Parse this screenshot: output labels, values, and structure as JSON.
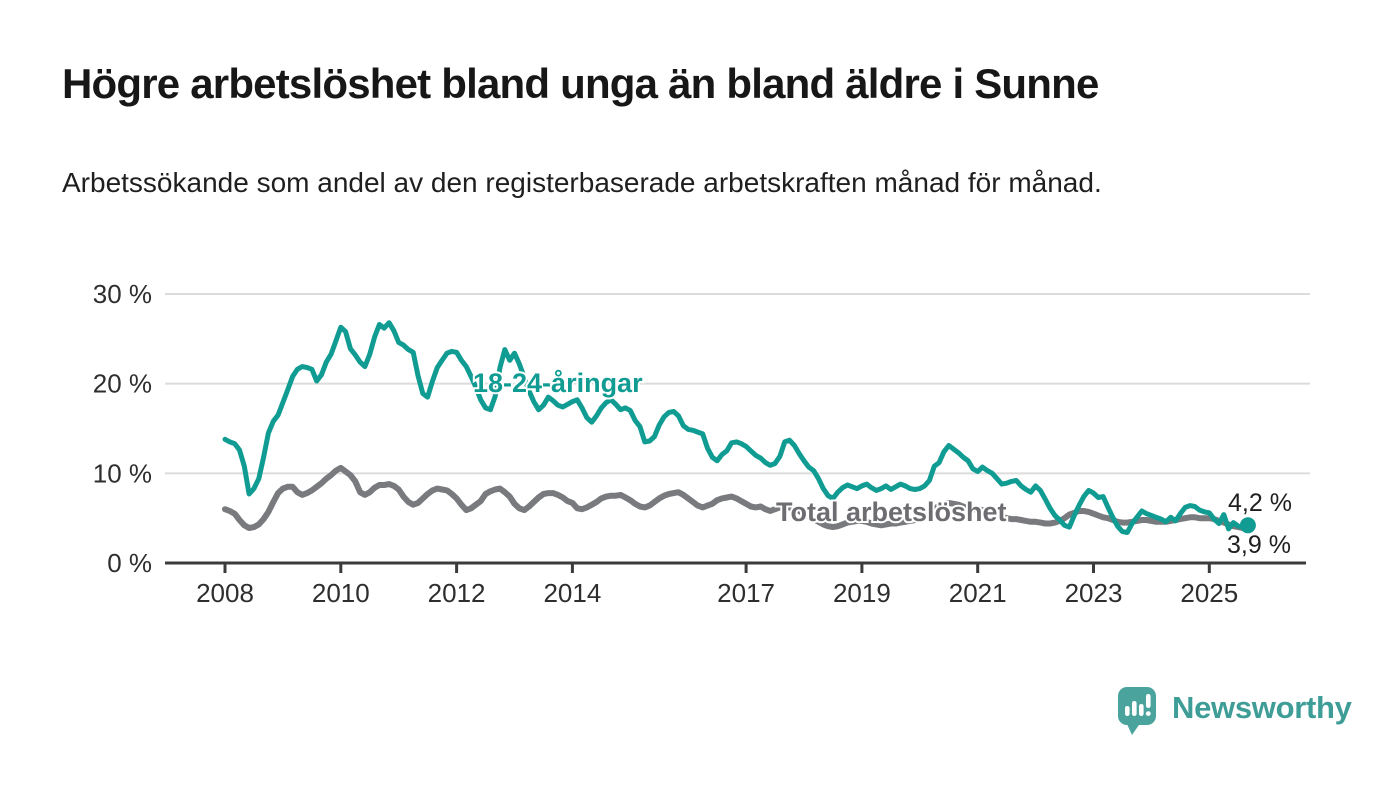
{
  "header": {
    "title": "Högre arbetslöshet bland unga än bland äldre i Sunne",
    "subtitle": "Arbetssökande som andel av den registerbaserade arbetskraften månad för månad."
  },
  "chart_data": {
    "type": "line",
    "unit": "%",
    "frequency": "monthly",
    "x_start": {
      "year": 2008,
      "month": 1
    },
    "x_end": {
      "year": 2025,
      "month": 9
    },
    "ylim": [
      0,
      30
    ],
    "grid": "horizontal",
    "colors": {
      "youth_line": "#109c92",
      "total_line": "#797a7e",
      "total_label": "#6c6c71",
      "gridline": "#dcdcdc",
      "axis": "#3b3b3b"
    },
    "y_ticks": [
      {
        "value": 30,
        "label": "30 %"
      },
      {
        "value": 20,
        "label": "20 %"
      },
      {
        "value": 10,
        "label": "10 %"
      },
      {
        "value": 0,
        "label": "0 %"
      }
    ],
    "x_ticks": [
      {
        "year": 2008,
        "label": "2008"
      },
      {
        "year": 2010,
        "label": "2010"
      },
      {
        "year": 2012,
        "label": "2012"
      },
      {
        "year": 2014,
        "label": "2014"
      },
      {
        "year": 2017,
        "label": "2017"
      },
      {
        "year": 2019,
        "label": "2019"
      },
      {
        "year": 2021,
        "label": "2021"
      },
      {
        "year": 2023,
        "label": "2023"
      },
      {
        "year": 2025,
        "label": "2025"
      }
    ],
    "series": [
      {
        "name": "Total arbetslöshet",
        "color": "#797a7e",
        "end_label": "3,9 %",
        "end_value": 3.9,
        "values": [
          6.0,
          5.8,
          5.5,
          4.8,
          4.2,
          3.9,
          4.0,
          4.3,
          4.9,
          5.7,
          6.8,
          7.8,
          8.3,
          8.5,
          8.5,
          7.9,
          7.6,
          7.8,
          8.1,
          8.5,
          8.9,
          9.4,
          9.8,
          10.3,
          10.6,
          10.2,
          9.8,
          9.1,
          7.9,
          7.6,
          7.9,
          8.4,
          8.7,
          8.7,
          8.8,
          8.6,
          8.2,
          7.4,
          6.8,
          6.5,
          6.7,
          7.2,
          7.7,
          8.1,
          8.3,
          8.2,
          8.1,
          7.7,
          7.2,
          6.5,
          5.9,
          6.1,
          6.5,
          6.9,
          7.7,
          8.0,
          8.2,
          8.3,
          7.9,
          7.4,
          6.6,
          6.1,
          5.9,
          6.3,
          6.8,
          7.3,
          7.7,
          7.8,
          7.8,
          7.6,
          7.3,
          6.9,
          6.7,
          6.1,
          6.0,
          6.2,
          6.5,
          6.8,
          7.2,
          7.4,
          7.5,
          7.5,
          7.6,
          7.3,
          7.0,
          6.6,
          6.3,
          6.2,
          6.4,
          6.8,
          7.2,
          7.5,
          7.7,
          7.8,
          7.9,
          7.6,
          7.2,
          6.8,
          6.4,
          6.2,
          6.4,
          6.6,
          7.0,
          7.2,
          7.3,
          7.4,
          7.2,
          6.9,
          6.6,
          6.3,
          6.2,
          6.3,
          6.0,
          5.8,
          6.0,
          6.2,
          6.3,
          6.2,
          6.0,
          5.8,
          5.5,
          5.2,
          4.9,
          4.6,
          4.3,
          4.1,
          4.0,
          4.1,
          4.3,
          4.5,
          4.6,
          4.7,
          4.7,
          4.6,
          4.4,
          4.3,
          4.2,
          4.3,
          4.4,
          4.4,
          4.5,
          4.6,
          4.7,
          4.8,
          4.9,
          5.0,
          5.4,
          6.0,
          6.4,
          6.6,
          6.7,
          6.6,
          6.5,
          6.3,
          6.1,
          6.0,
          6.0,
          5.9,
          5.8,
          5.6,
          5.4,
          5.2,
          5.0,
          4.9,
          4.9,
          4.8,
          4.7,
          4.6,
          4.6,
          4.5,
          4.4,
          4.4,
          4.5,
          4.7,
          5.0,
          5.4,
          5.6,
          5.8,
          5.8,
          5.7,
          5.5,
          5.3,
          5.1,
          5.0,
          4.8,
          4.6,
          4.5,
          4.5,
          4.6,
          4.7,
          4.8,
          4.8,
          4.7,
          4.6,
          4.6,
          4.6,
          4.7,
          4.8,
          4.9,
          5.0,
          5.1,
          5.1,
          5.0,
          5.0,
          5.0,
          4.9,
          4.7,
          4.5,
          4.3,
          4.1,
          4.0,
          3.9,
          3.9
        ]
      },
      {
        "name": "18-24-åringar",
        "color": "#109c92",
        "end_label": "4,2 %",
        "end_value": 4.2,
        "values": [
          13.8,
          13.5,
          13.3,
          12.6,
          10.8,
          7.7,
          8.3,
          9.4,
          11.8,
          14.5,
          15.8,
          16.5,
          17.9,
          19.3,
          20.8,
          21.6,
          21.9,
          21.8,
          21.6,
          20.3,
          21.0,
          22.4,
          23.3,
          24.8,
          26.3,
          25.8,
          23.9,
          23.2,
          22.4,
          21.9,
          23.3,
          25.2,
          26.6,
          26.2,
          26.8,
          25.9,
          24.6,
          24.3,
          23.8,
          23.5,
          20.9,
          18.9,
          18.5,
          20.3,
          21.8,
          22.6,
          23.4,
          23.6,
          23.5,
          22.6,
          21.9,
          20.8,
          19.6,
          18.2,
          17.3,
          17.1,
          18.6,
          21.8,
          23.8,
          22.6,
          23.4,
          22.2,
          20.7,
          19.2,
          18.0,
          17.1,
          17.6,
          18.5,
          18.1,
          17.6,
          17.4,
          17.7,
          18.0,
          18.2,
          17.3,
          16.2,
          15.7,
          16.4,
          17.3,
          17.9,
          18.2,
          17.7,
          17.1,
          17.3,
          17.0,
          15.9,
          15.2,
          13.5,
          13.6,
          14.1,
          15.4,
          16.3,
          16.8,
          16.9,
          16.4,
          15.3,
          14.9,
          14.8,
          14.6,
          14.4,
          12.8,
          11.8,
          11.4,
          12.1,
          12.5,
          13.4,
          13.5,
          13.3,
          13.0,
          12.5,
          12.0,
          11.7,
          11.2,
          10.9,
          11.1,
          11.9,
          13.5,
          13.7,
          13.1,
          12.2,
          11.4,
          10.7,
          10.3,
          9.4,
          8.3,
          7.5,
          7.2,
          7.9,
          8.4,
          8.7,
          8.5,
          8.3,
          8.6,
          8.8,
          8.4,
          8.1,
          8.3,
          8.6,
          8.2,
          8.5,
          8.8,
          8.6,
          8.3,
          8.2,
          8.3,
          8.6,
          9.2,
          10.8,
          11.2,
          12.4,
          13.1,
          12.7,
          12.3,
          11.8,
          11.4,
          10.5,
          10.2,
          10.7,
          10.3,
          10.0,
          9.4,
          8.8,
          8.9,
          9.1,
          9.2,
          8.6,
          8.2,
          7.9,
          8.6,
          8.1,
          7.1,
          6.1,
          5.3,
          4.8,
          4.2,
          4.0,
          5.3,
          6.4,
          7.4,
          8.1,
          7.8,
          7.3,
          7.4,
          6.2,
          5.1,
          4.1,
          3.5,
          3.4,
          4.4,
          5.1,
          5.8,
          5.5,
          5.3,
          5.1,
          4.9,
          4.6,
          5.1,
          4.7,
          5.5,
          6.2,
          6.4,
          6.3,
          5.9,
          5.7,
          5.6,
          4.9,
          4.4,
          5.4,
          3.8,
          4.5,
          4.1,
          4.0,
          4.2
        ]
      }
    ]
  },
  "footer": {
    "brand": "Newsworthy",
    "logo_icon": "speech-bubble-bar-chart-icon",
    "brand_color": "#3f9d97"
  }
}
